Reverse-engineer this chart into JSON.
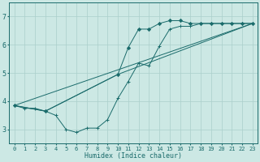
{
  "xlabel": "Humidex (Indice chaleur)",
  "bg_color": "#cce8e4",
  "grid_color": "#aacfcb",
  "line_color": "#1a6b6b",
  "xlim": [
    -0.5,
    23.5
  ],
  "ylim": [
    2.5,
    7.5
  ],
  "xticks": [
    0,
    1,
    2,
    3,
    4,
    5,
    6,
    7,
    8,
    9,
    10,
    11,
    12,
    13,
    14,
    15,
    16,
    17,
    18,
    19,
    20,
    21,
    22,
    23
  ],
  "yticks": [
    3,
    4,
    5,
    6,
    7
  ],
  "series": [
    {
      "x": [
        0,
        1,
        2,
        3,
        4,
        5,
        6,
        7,
        8,
        9,
        10,
        11,
        12,
        13,
        14,
        15,
        16,
        17,
        18,
        19,
        20,
        21,
        22,
        23
      ],
      "y": [
        3.85,
        3.75,
        3.75,
        3.65,
        3.5,
        3.0,
        2.9,
        3.05,
        3.05,
        3.35,
        4.1,
        4.7,
        5.35,
        5.25,
        5.95,
        6.55,
        6.65,
        6.65,
        6.75,
        6.75,
        6.75,
        6.75,
        6.75,
        6.75
      ],
      "marker": "+"
    },
    {
      "x": [
        0,
        3,
        10,
        11,
        12,
        13,
        14,
        15,
        16,
        17,
        18,
        19,
        20,
        21,
        22,
        23
      ],
      "y": [
        3.85,
        3.65,
        4.95,
        5.9,
        6.55,
        6.55,
        6.75,
        6.85,
        6.85,
        6.75,
        6.75,
        6.75,
        6.75,
        6.75,
        6.75,
        6.75
      ],
      "marker": "D"
    },
    {
      "x": [
        0,
        3,
        10,
        23
      ],
      "y": [
        3.85,
        3.65,
        4.95,
        6.75
      ],
      "marker": null
    },
    {
      "x": [
        0,
        23
      ],
      "y": [
        3.85,
        6.75
      ],
      "marker": null
    }
  ]
}
